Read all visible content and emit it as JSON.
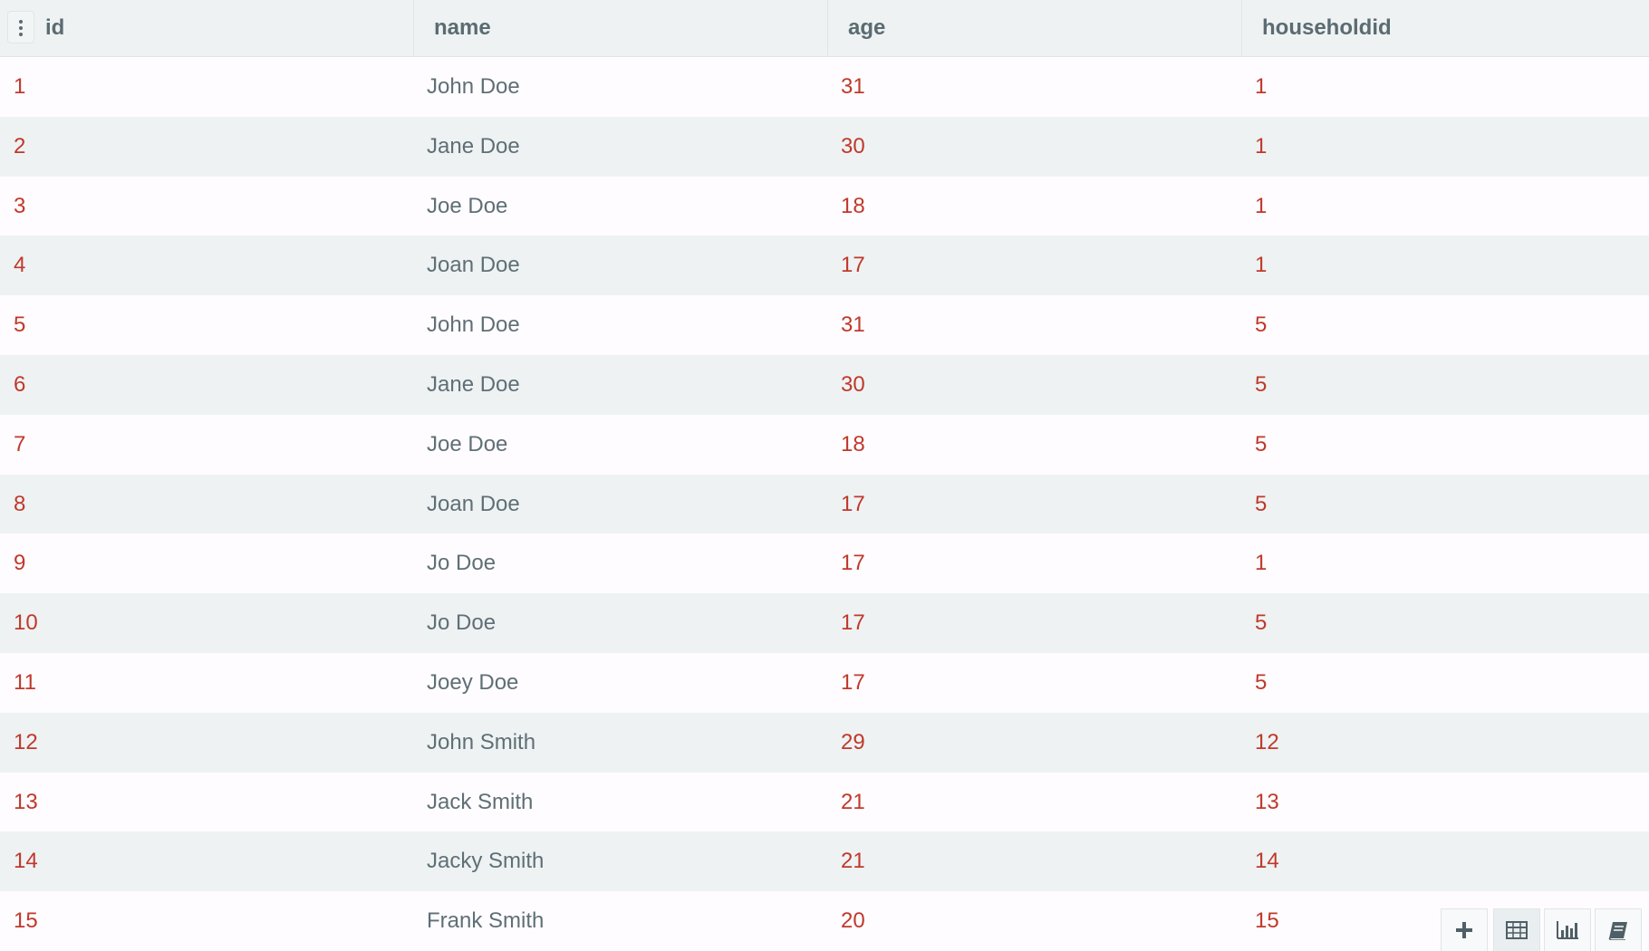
{
  "table": {
    "columns": [
      "id",
      "name",
      "age",
      "householdid"
    ],
    "rows": [
      {
        "id": "1",
        "name": "John Doe",
        "age": "31",
        "householdid": "1"
      },
      {
        "id": "2",
        "name": "Jane Doe",
        "age": "30",
        "householdid": "1"
      },
      {
        "id": "3",
        "name": "Joe Doe",
        "age": "18",
        "householdid": "1"
      },
      {
        "id": "4",
        "name": "Joan Doe",
        "age": "17",
        "householdid": "1"
      },
      {
        "id": "5",
        "name": "John Doe",
        "age": "31",
        "householdid": "5"
      },
      {
        "id": "6",
        "name": "Jane Doe",
        "age": "30",
        "householdid": "5"
      },
      {
        "id": "7",
        "name": "Joe Doe",
        "age": "18",
        "householdid": "5"
      },
      {
        "id": "8",
        "name": "Joan Doe",
        "age": "17",
        "householdid": "5"
      },
      {
        "id": "9",
        "name": "Jo Doe",
        "age": "17",
        "householdid": "1"
      },
      {
        "id": "10",
        "name": "Jo Doe",
        "age": "17",
        "householdid": "5"
      },
      {
        "id": "11",
        "name": "Joey Doe",
        "age": "17",
        "householdid": "5"
      },
      {
        "id": "12",
        "name": "John Smith",
        "age": "29",
        "householdid": "12"
      },
      {
        "id": "13",
        "name": "Jack Smith",
        "age": "21",
        "householdid": "13"
      },
      {
        "id": "14",
        "name": "Jacky Smith",
        "age": "21",
        "householdid": "14"
      },
      {
        "id": "15",
        "name": "Frank Smith",
        "age": "20",
        "householdid": "15"
      }
    ]
  },
  "toolbar": {
    "buttons": [
      {
        "icon": "plus-icon",
        "active": false
      },
      {
        "icon": "table-icon",
        "active": true
      },
      {
        "icon": "bar-chart-icon",
        "active": false
      },
      {
        "icon": "notebook-icon",
        "active": false
      }
    ]
  },
  "colors": {
    "header_bg": "#eef2f3",
    "number_text": "#c0392b",
    "text": "#5f6f76",
    "header_text": "#5b6b72"
  }
}
